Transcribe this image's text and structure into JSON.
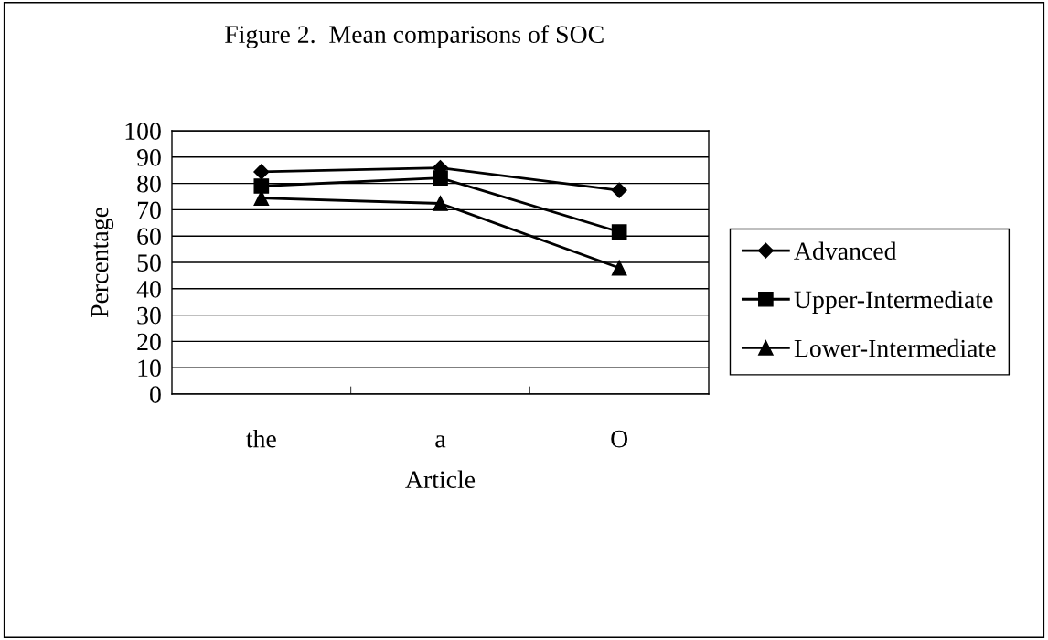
{
  "chart_data": {
    "type": "line",
    "title": "Figure 2.  Mean comparisons of SOC",
    "xlabel": "Article",
    "ylabel": "Percentage",
    "categories": [
      "the",
      "a",
      "O"
    ],
    "series": [
      {
        "name": "Advanced",
        "color": "#000000",
        "marker": "diamond",
        "values": [
          84.4,
          85.9,
          77.4
        ]
      },
      {
        "name": "Upper-Intermediate",
        "color": "#000000",
        "marker": "square",
        "values": [
          79.0,
          82.1,
          61.6
        ]
      },
      {
        "name": "Lower-Intermediate",
        "color": "#000000",
        "marker": "triangle",
        "values": [
          74.4,
          72.4,
          47.9
        ]
      }
    ],
    "ylim": [
      0,
      100
    ],
    "yticks": [
      0,
      10,
      20,
      30,
      40,
      50,
      60,
      70,
      80,
      90,
      100
    ],
    "grid": "y",
    "legend": "right",
    "line_style": "solid"
  }
}
